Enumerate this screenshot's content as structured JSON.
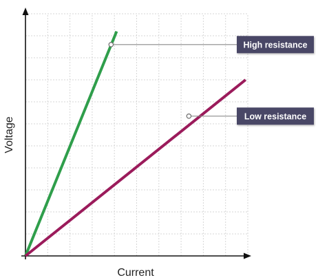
{
  "chart_data": {
    "type": "line",
    "xlabel": "Current",
    "ylabel": "Voltage",
    "xlim": [
      0,
      10
    ],
    "ylim": [
      0,
      11
    ],
    "grid": true,
    "tick_labels_shown": false,
    "series": [
      {
        "name": "High resistance",
        "color": "#2f9e4b",
        "x": [
          0,
          4.1
        ],
        "y": [
          0,
          10.2
        ],
        "marked_point": {
          "x": 3.85,
          "y": 9.6
        }
      },
      {
        "name": "Low resistance",
        "color": "#9b1b5b",
        "x": [
          0,
          9.9
        ],
        "y": [
          0,
          8.0
        ],
        "marked_point": {
          "x": 7.35,
          "y": 6.35
        }
      }
    ],
    "callout_color": "#4a4766"
  }
}
